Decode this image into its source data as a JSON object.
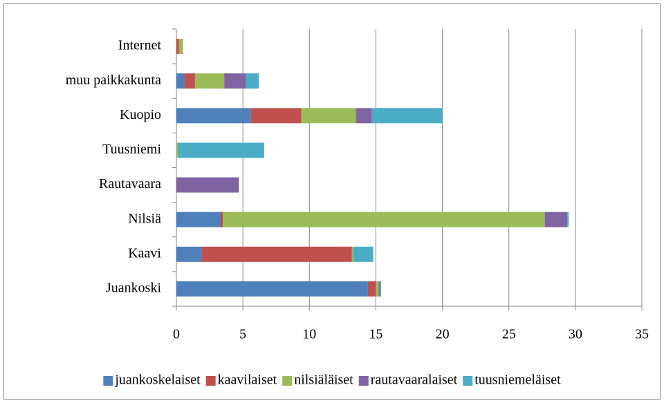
{
  "chart_data": {
    "type": "stacked_barh",
    "categories": [
      "Juankoski",
      "Kaavi",
      "Nilsiä",
      "Rautavaara",
      "Tuusniemi",
      "Kuopio",
      "muu paikkakunta",
      "Internet"
    ],
    "series": [
      {
        "name": "juankoskelaiset",
        "color": "#4f81bd",
        "values": [
          14.4,
          1.9,
          3.3,
          0,
          0,
          5.6,
          0.6,
          0
        ]
      },
      {
        "name": "kaavilaiset",
        "color": "#c0504d",
        "values": [
          0.6,
          11.3,
          0.2,
          0,
          0,
          3.8,
          0.8,
          0.2
        ]
      },
      {
        "name": "nilsiäläiset",
        "color": "#9bbb59",
        "values": [
          0.2,
          0.1,
          24.2,
          0,
          0.1,
          4.1,
          2.2,
          0.3
        ]
      },
      {
        "name": "rautavaaralaiset",
        "color": "#8064a2",
        "values": [
          0.1,
          0,
          1.7,
          4.7,
          0,
          1.2,
          1.6,
          0
        ]
      },
      {
        "name": "tuusniemeläiset",
        "color": "#4bacc6",
        "values": [
          0.1,
          1.5,
          0.1,
          0,
          6.5,
          5.3,
          1.0,
          0
        ]
      }
    ],
    "xlim": [
      0,
      35
    ],
    "xticks": [
      0,
      5,
      10,
      15,
      20,
      25,
      30,
      35
    ],
    "grid": true,
    "legend": "bottom"
  }
}
